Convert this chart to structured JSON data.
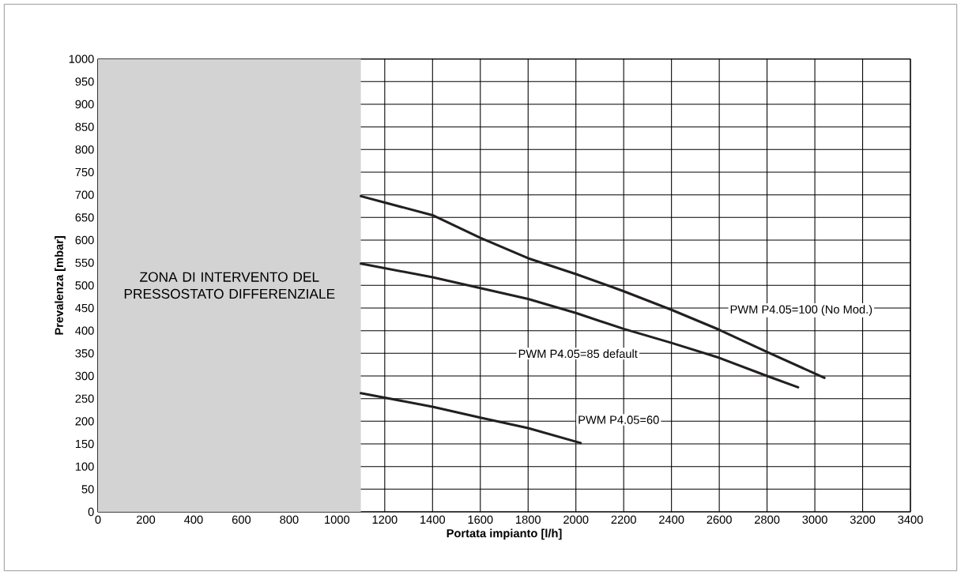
{
  "chart_data": {
    "type": "line",
    "xlabel": "Portata impianto [l/h]",
    "ylabel": "Prevalenza [mbar]",
    "xlim": [
      0,
      3400
    ],
    "xticks": [
      0,
      200,
      400,
      600,
      800,
      1000,
      1200,
      1400,
      1600,
      1800,
      2000,
      2200,
      2400,
      2600,
      2800,
      3000,
      3200,
      3400
    ],
    "ylim": [
      0,
      1000
    ],
    "yticks": [
      0,
      50,
      100,
      150,
      200,
      250,
      300,
      350,
      400,
      450,
      500,
      550,
      600,
      650,
      700,
      750,
      800,
      850,
      900,
      950,
      1000
    ],
    "grid": true,
    "legend": false,
    "marker": "none",
    "line_style": "solid",
    "bands": [
      {
        "axis": "x",
        "from": 0,
        "to": 1100,
        "label": "ZONA DI INTERVENTO DEL PRESSOSTATO DIFFERENZIALE",
        "color": "#d3d3d3"
      }
    ],
    "series": [
      {
        "name": "PWM P4.05=100 (No Mod.)",
        "color": "#231f20",
        "x": [
          1100,
          1400,
          1600,
          1800,
          2000,
          2200,
          2400,
          2600,
          2800,
          3040
        ],
        "values": [
          697,
          655,
          605,
          560,
          525,
          487,
          446,
          402,
          353,
          296
        ]
      },
      {
        "name": "PWM P4.05=85 default",
        "color": "#231f20",
        "x": [
          1100,
          1400,
          1600,
          1800,
          2000,
          2200,
          2400,
          2600,
          2800,
          2930
        ],
        "values": [
          548,
          518,
          494,
          470,
          439,
          404,
          373,
          340,
          300,
          275
        ]
      },
      {
        "name": "PWM P4.05=60",
        "color": "#231f20",
        "x": [
          1100,
          1200,
          1400,
          1600,
          1800,
          2020
        ],
        "values": [
          262,
          252,
          232,
          208,
          185,
          152
        ]
      }
    ]
  }
}
